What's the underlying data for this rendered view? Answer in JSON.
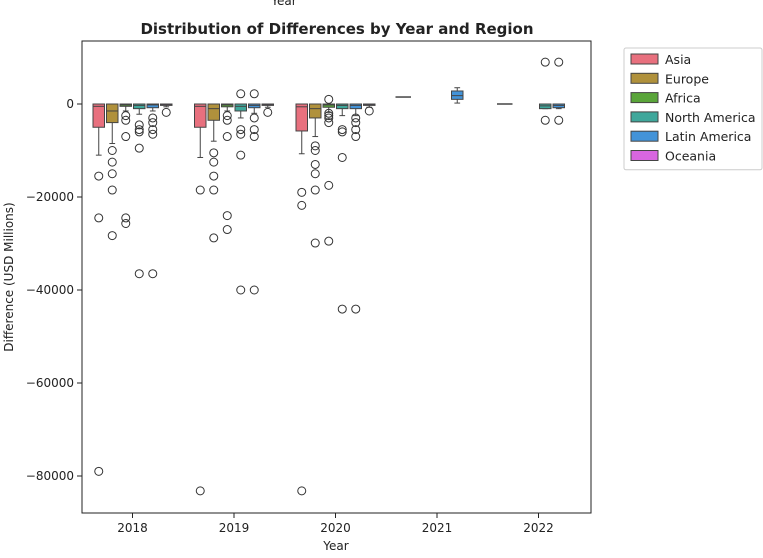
{
  "chart_data": {
    "type": "box",
    "title": "Distribution of Differences by Year and Region",
    "top_cropped_label": "Year",
    "xlabel": "Year",
    "ylabel": "Difference (USD Millions)",
    "categories": [
      "2018",
      "2019",
      "2020",
      "2021",
      "2022"
    ],
    "ylim": [
      -88000,
      13500
    ],
    "yticks": [
      0,
      -20000,
      -40000,
      -60000,
      -80000
    ],
    "ytick_labels": [
      "0",
      "−20000",
      "−40000",
      "−60000",
      "−80000"
    ],
    "legend_position": "outside-top-right",
    "grid": false,
    "series": [
      {
        "name": "Asia",
        "color": "#e8707e",
        "boxes": [
          {
            "year": "2018",
            "q1": -5000,
            "median": -500,
            "q3": 0,
            "whislo": -11000,
            "whishi": 0,
            "fliers": [
              -15500,
              -24500,
              -79000
            ]
          },
          {
            "year": "2019",
            "q1": -5000,
            "median": -500,
            "q3": 0,
            "whislo": -11500,
            "whishi": 0,
            "fliers": [
              -18500,
              -83200
            ]
          },
          {
            "year": "2020",
            "q1": -5800,
            "median": -600,
            "q3": 0,
            "whislo": -10700,
            "whishi": 0,
            "fliers": [
              -19000,
              -21800,
              -83200
            ]
          }
        ]
      },
      {
        "name": "Europe",
        "color": "#b0913c",
        "boxes": [
          {
            "year": "2018",
            "q1": -4000,
            "median": -1500,
            "q3": 0,
            "whislo": -8500,
            "whishi": 0,
            "fliers": [
              -10000,
              -12500,
              -15000,
              -18500,
              -28300
            ]
          },
          {
            "year": "2019",
            "q1": -3500,
            "median": -1000,
            "q3": 0,
            "whislo": -8000,
            "whishi": 0,
            "fliers": [
              -10500,
              -12500,
              -15500,
              -18500,
              -28800
            ]
          },
          {
            "year": "2020",
            "q1": -3000,
            "median": -1000,
            "q3": 0,
            "whislo": -7000,
            "whishi": 0,
            "fliers": [
              -9000,
              -10000,
              -13000,
              -15000,
              -18500,
              -29900
            ]
          }
        ]
      },
      {
        "name": "Africa",
        "color": "#5aa53a",
        "boxes": [
          {
            "year": "2018",
            "q1": -500,
            "median": -200,
            "q3": 0,
            "whislo": -1500,
            "whishi": 0,
            "fliers": [
              -2500,
              -3500,
              -7000,
              -24500,
              -25700
            ]
          },
          {
            "year": "2019",
            "q1": -600,
            "median": -200,
            "q3": 0,
            "whislo": -1500,
            "whishi": 0,
            "fliers": [
              -2500,
              -3500,
              -7000,
              -24000,
              -27000
            ]
          },
          {
            "year": "2020",
            "q1": -700,
            "median": -200,
            "q3": 0,
            "whislo": -1800,
            "whishi": 0,
            "fliers": [
              -2000,
              -2500,
              -3000,
              -4000,
              -17500,
              -29500,
              1000
            ]
          }
        ]
      },
      {
        "name": "North America",
        "color": "#3fa79b",
        "boxes": [
          {
            "year": "2018",
            "q1": -1000,
            "median": -300,
            "q3": 0,
            "whislo": -2200,
            "whishi": 0,
            "fliers": [
              -4500,
              -5500,
              -6000,
              -9500,
              -36500
            ]
          },
          {
            "year": "2019",
            "q1": -1500,
            "median": -500,
            "q3": 0,
            "whislo": -3000,
            "whishi": 0,
            "fliers": [
              -5500,
              -6500,
              -11000,
              -40000,
              2200
            ]
          },
          {
            "year": "2020",
            "q1": -1000,
            "median": -300,
            "q3": 0,
            "whislo": -2500,
            "whishi": 0,
            "fliers": [
              -5500,
              -6000,
              -11500,
              -44100
            ]
          },
          {
            "year": "2022",
            "q1": -1000,
            "median": -400,
            "q3": 0,
            "whislo": -1000,
            "whishi": 0,
            "fliers": [
              9000,
              -3500
            ]
          }
        ]
      },
      {
        "name": "Latin America",
        "color": "#4393d8",
        "boxes": [
          {
            "year": "2018",
            "q1": -800,
            "median": -200,
            "q3": 0,
            "whislo": -1500,
            "whishi": 0,
            "fliers": [
              -3000,
              -4000,
              -5500,
              -6500,
              -36500
            ]
          },
          {
            "year": "2019",
            "q1": -800,
            "median": -300,
            "q3": 0,
            "whislo": -2000,
            "whishi": 0,
            "fliers": [
              -3000,
              -5500,
              -7000,
              -40000,
              2200
            ]
          },
          {
            "year": "2020",
            "q1": -1000,
            "median": -300,
            "q3": 0,
            "whislo": -2500,
            "whishi": 0,
            "fliers": [
              -3000,
              -4000,
              -5500,
              -7000,
              -44100
            ]
          },
          {
            "year": "2021",
            "q1": 1000,
            "median": 1800,
            "q3": 2800,
            "whislo": 200,
            "whishi": 3500,
            "fliers": []
          },
          {
            "year": "2022",
            "q1": -800,
            "median": -300,
            "q3": 0,
            "whislo": -1000,
            "whishi": 0,
            "fliers": [
              9000,
              -3500
            ]
          }
        ]
      },
      {
        "name": "Oceania",
        "color": "#d866e0",
        "boxes": [
          {
            "year": "2018",
            "q1": -300,
            "median": -100,
            "q3": 0,
            "whislo": -600,
            "whishi": 0,
            "fliers": [
              -1800
            ]
          },
          {
            "year": "2019",
            "q1": -300,
            "median": -100,
            "q3": 0,
            "whislo": -700,
            "whishi": 0,
            "fliers": [
              -1800
            ]
          },
          {
            "year": "2020",
            "q1": -300,
            "median": -100,
            "q3": 0,
            "whislo": -700,
            "whishi": 0,
            "fliers": [
              -1500
            ]
          }
        ]
      }
    ],
    "flat_medians": [
      {
        "year": "2021",
        "series_index": 0,
        "value": 1500
      },
      {
        "year": "2022",
        "series_index": 0,
        "value": 0
      }
    ]
  }
}
